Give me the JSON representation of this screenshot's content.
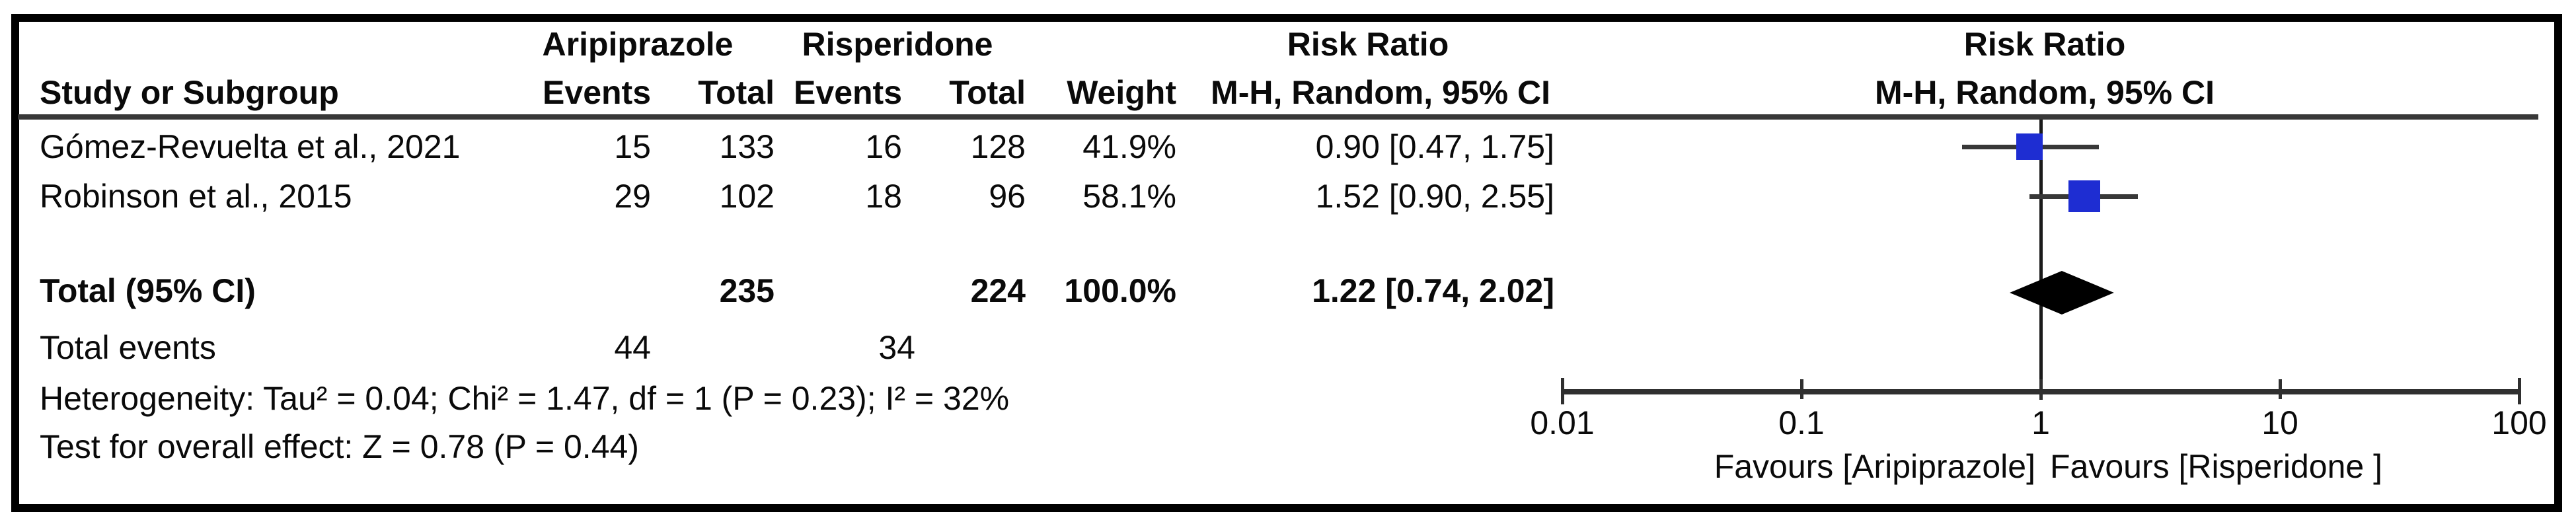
{
  "header": {
    "group1": "Aripiprazole",
    "group2": "Risperidone",
    "study_col": "Study or Subgroup",
    "events_col": "Events",
    "total_col": "Total",
    "weight_col": "Weight",
    "risk_ratio": "Risk Ratio",
    "method": "M-H, Random, 95% CI"
  },
  "rows": [
    {
      "study": "Gómez-Revuelta et al., 2021",
      "e1": "15",
      "t1": "133",
      "e2": "16",
      "t2": "128",
      "weight": "41.9%",
      "rr_text": "0.90 [0.47, 1.75]"
    },
    {
      "study": "Robinson et al., 2015",
      "e1": "29",
      "t1": "102",
      "e2": "18",
      "t2": "96",
      "weight": "58.1%",
      "rr_text": "1.52 [0.90, 2.55]"
    }
  ],
  "total_row": {
    "label": "Total (95% CI)",
    "t1": "235",
    "t2": "224",
    "weight": "100.0%",
    "rr_text": "1.22 [0.74, 2.02]"
  },
  "total_events": {
    "label": "Total events",
    "e1": "44",
    "e2": "34"
  },
  "stats": {
    "heterogeneity": "Heterogeneity: Tau² = 0.04; Chi² = 1.47, df = 1 (P = 0.23); I² = 32%",
    "overall_effect": "Test for overall effect: Z = 0.78 (P = 0.44)"
  },
  "axis": {
    "tick_labels": [
      "0.01",
      "0.1",
      "1",
      "10",
      "100"
    ],
    "favours_left": "Favours [Aripiprazole]",
    "favours_right": "Favours [Risperidone ]"
  },
  "colors": {
    "marker_blue": "#1E2DD2",
    "diamond_black": "#000000",
    "line_gray": "#383838"
  },
  "chart_data": {
    "type": "scatter",
    "subtype": "forest-plot",
    "title": "Risk Ratio",
    "method": "M-H, Random, 95% CI",
    "x_scale": "log10",
    "x_ticks": [
      0.01,
      0.1,
      1,
      10,
      100
    ],
    "xlim": [
      0.01,
      100
    ],
    "null_line": 1,
    "grid": false,
    "xlabel_left": "Favours [Aripiprazole]",
    "xlabel_right": "Favours [Risperidone ]",
    "studies": [
      {
        "name": "Gómez-Revuelta et al., 2021",
        "events_arip": 15,
        "total_arip": 133,
        "events_risp": 16,
        "total_risp": 128,
        "weight_pct": 41.9,
        "rr": 0.9,
        "ci_low": 0.47,
        "ci_high": 1.75
      },
      {
        "name": "Robinson et al., 2015",
        "events_arip": 29,
        "total_arip": 102,
        "events_risp": 18,
        "total_risp": 96,
        "weight_pct": 58.1,
        "rr": 1.52,
        "ci_low": 0.9,
        "ci_high": 2.55
      }
    ],
    "pooled": {
      "label": "Total (95% CI)",
      "total_arip": 235,
      "total_risp": 224,
      "total_events_arip": 44,
      "total_events_risp": 34,
      "weight_pct": 100.0,
      "rr": 1.22,
      "ci_low": 0.74,
      "ci_high": 2.02
    },
    "heterogeneity": {
      "tau2": 0.04,
      "chi2": 1.47,
      "df": 1,
      "p": 0.23,
      "i2_pct": 32
    },
    "overall_effect": {
      "z": 0.78,
      "p": 0.44
    }
  }
}
